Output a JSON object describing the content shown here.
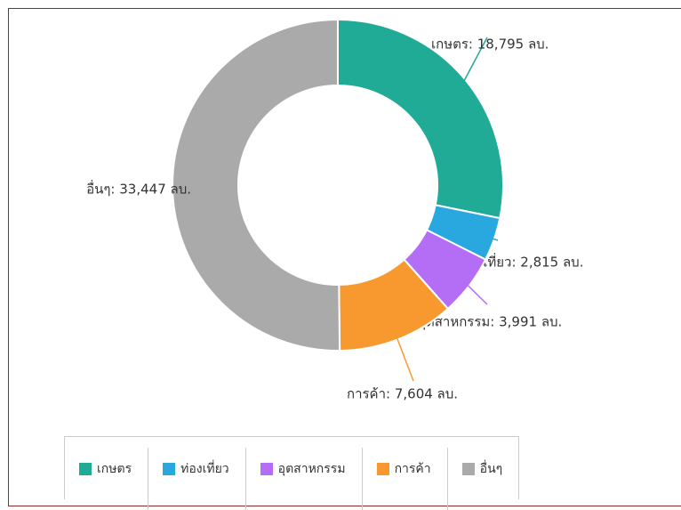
{
  "chart_data": {
    "type": "donut",
    "categories": [
      "เกษตร",
      "ท่องเที่ยว",
      "อุตสาหกรรม",
      "การค้า",
      "อื่นๆ"
    ],
    "values": [
      18795,
      2815,
      3991,
      7604,
      33447
    ],
    "value_labels": [
      "เกษตร: 18,795 ลบ.",
      "ท่องเที่ยว: 2,815 ลบ.",
      "อุตสาหกรรม: 3,991 ลบ.",
      "การค้า: 7,604 ลบ.",
      "อื่นๆ: 33,447 ลบ."
    ],
    "colors": [
      "#20ab97",
      "#29a8e0",
      "#b46ef5",
      "#f7992e",
      "#aaaaaa"
    ]
  }
}
